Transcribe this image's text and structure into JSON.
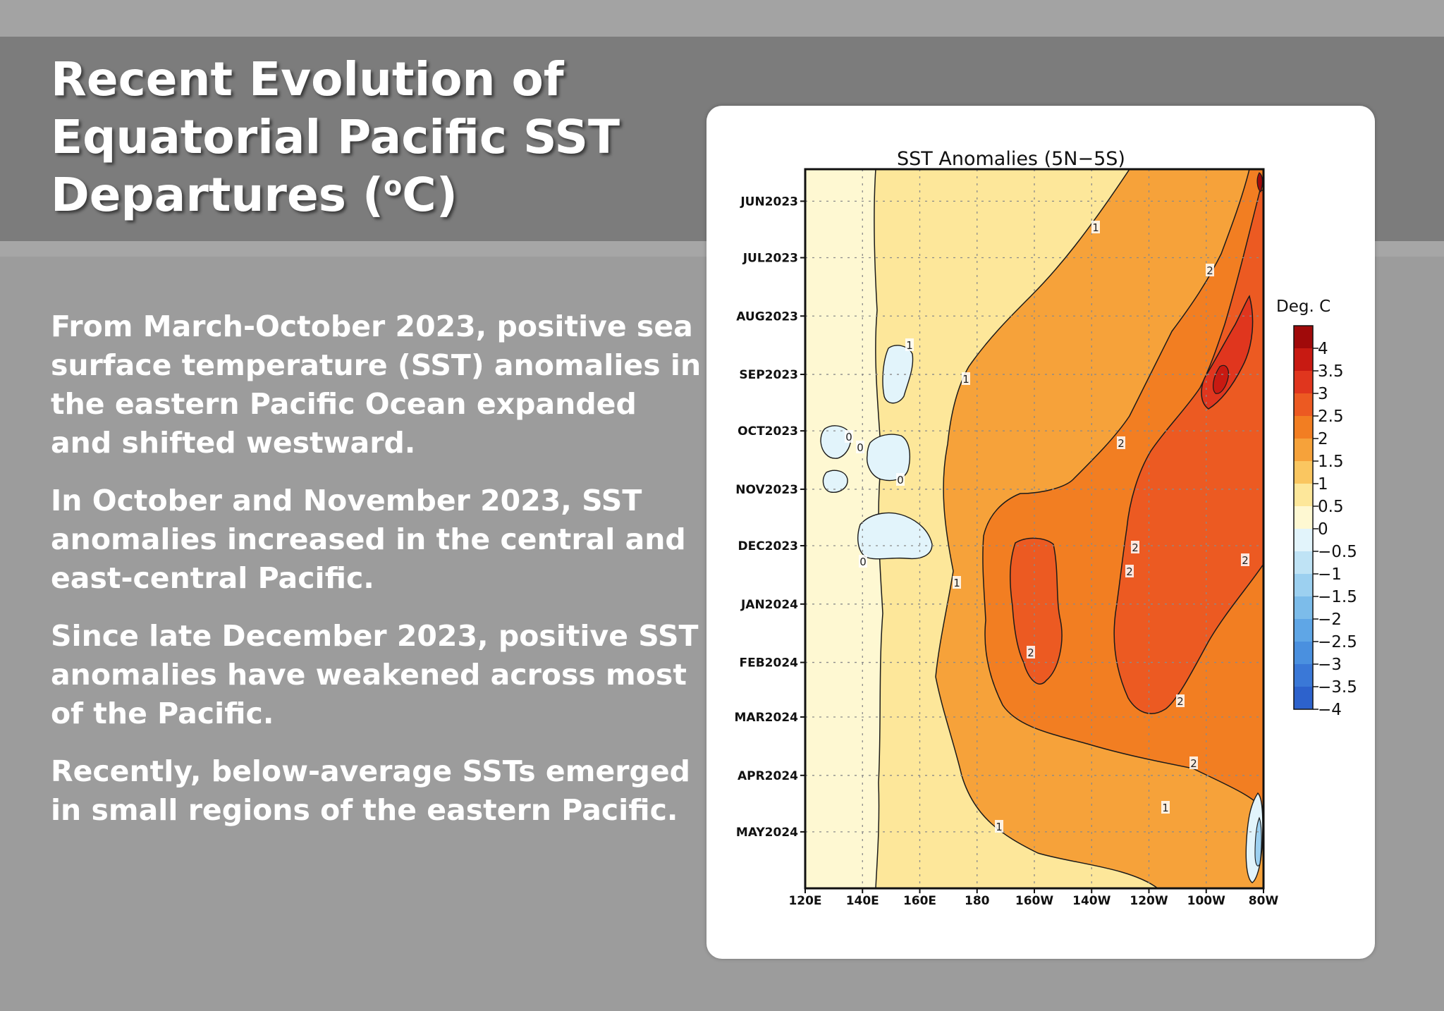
{
  "slide": {
    "title_lines": [
      "Recent Evolution of",
      "Equatorial Pacific SST",
      "Departures (",
      "C)"
    ],
    "title_superscript": "o",
    "bullets": [
      {
        "lines": [
          "From March-October 2023, positive sea",
          "surface temperature (SST) anomalies in",
          "the eastern Pacific Ocean expanded",
          "and shifted westward."
        ]
      },
      {
        "lines": [
          "In October and November 2023, SST",
          "anomalies increased in the central and",
          "east-central Pacific."
        ]
      },
      {
        "lines": [
          "Since late December 2023, positive SST",
          "anomalies have weakened across most",
          "of the Pacific."
        ]
      },
      {
        "lines": [
          "Recently, below-average SSTs emerged",
          "in small regions of the eastern Pacific."
        ]
      }
    ]
  },
  "chart_data": {
    "type": "heatmap",
    "title": "SST Anomalies (5N−5S)",
    "x_ticks": [
      "120E",
      "140E",
      "160E",
      "180",
      "160W",
      "140W",
      "120W",
      "100W",
      "80W"
    ],
    "x_lon": [
      120,
      140,
      160,
      180,
      200,
      220,
      240,
      260,
      280
    ],
    "y_ticks": [
      "JUN2023",
      "JUL2023",
      "AUG2023",
      "SEP2023",
      "OCT2023",
      "NOV2023",
      "DEC2023",
      "JAN2024",
      "FEB2024",
      "MAR2024",
      "APR2024",
      "MAY2024"
    ],
    "xlim": [
      120,
      280
    ],
    "y_range": [
      "2023-05-15",
      "2024-05-31"
    ],
    "grid": true,
    "colorbar": {
      "title": "Deg. C",
      "labels": [
        "4",
        "3.5",
        "3",
        "2.5",
        "2",
        "1.5",
        "1",
        "0.5",
        "0",
        "−0.5",
        "−1",
        "−1.5",
        "−2",
        "−2.5",
        "−3",
        "−3.5",
        "−4"
      ],
      "colors": [
        "#a00a0a",
        "#c81a12",
        "#e0361e",
        "#ec5a22",
        "#f27e22",
        "#f6a23a",
        "#fac660",
        "#fde79a",
        "#fef8d2",
        "#e2f4fb",
        "#bfe3f5",
        "#9cd0f0",
        "#7cbcea",
        "#5fa6e6",
        "#4a90df",
        "#3a78d7",
        "#2d62cc"
      ]
    },
    "contour_labels": [
      "1",
      "2",
      "1",
      "2",
      "2",
      "2",
      "2",
      "2",
      "2",
      "2",
      "1",
      "1",
      "1",
      "1",
      "0",
      "0",
      "0",
      "0"
    ],
    "series": []
  }
}
